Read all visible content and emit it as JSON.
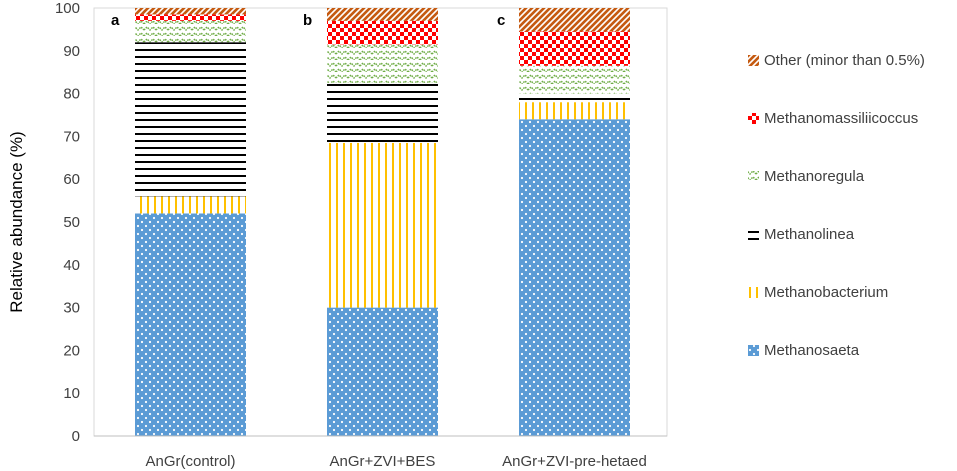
{
  "chart_data": {
    "type": "bar",
    "stacked": true,
    "ylabel": "Relative abundance (%)",
    "ylim": [
      0,
      100
    ],
    "yticks": [
      "0",
      "10",
      "20",
      "30",
      "40",
      "50",
      "60",
      "70",
      "80",
      "90",
      "100"
    ],
    "grid": false,
    "legend": "right",
    "categories": [
      "AnGr(control)",
      "AnGr+ZVI+BES",
      "AnGr+ZVI-pre-hetaed"
    ],
    "panel_labels": [
      "a",
      "b",
      "c"
    ],
    "series": [
      {
        "name": "Methanosaeta",
        "values": [
          52,
          30,
          74
        ],
        "color": "#5b9bd5",
        "pattern": "dots"
      },
      {
        "name": "Methanobacterium",
        "values": [
          4,
          38.5,
          4
        ],
        "color": "#ffc000",
        "pattern": "vertical-lines"
      },
      {
        "name": "Methanolinea",
        "values": [
          36,
          14,
          2
        ],
        "color": "#000000",
        "pattern": "horizontal-lines"
      },
      {
        "name": "Methanoregula",
        "values": [
          5,
          9,
          6.5
        ],
        "color": "#70ad47",
        "pattern": "zigzag"
      },
      {
        "name": "Methanomassiliicoccus",
        "values": [
          1.5,
          5.5,
          8
        ],
        "color": "#ff0000",
        "pattern": "squares"
      },
      {
        "name": "Other (minor than 0.5%)",
        "values": [
          1.5,
          3,
          5.5
        ],
        "color": "#c55a11",
        "pattern": "diagonal-lines"
      }
    ]
  }
}
